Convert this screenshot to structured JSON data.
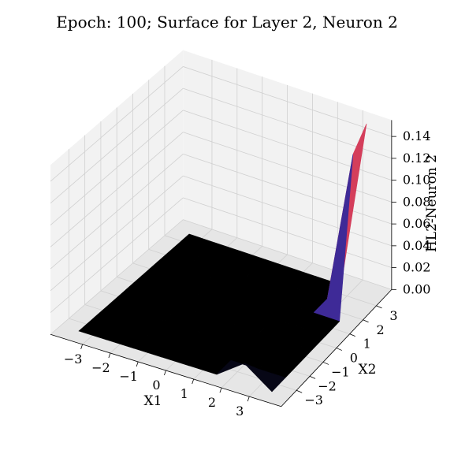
{
  "chart_data": {
    "type": "surface3d",
    "title": "Epoch: 100; Surface for Layer 2, Neuron 2",
    "xlabel": "X1",
    "ylabel": "X2",
    "zlabel": "HL2-Neuron 2",
    "x_ticks": [
      "−3",
      "−2",
      "−1",
      "0",
      "1",
      "2",
      "3"
    ],
    "y_ticks": [
      "−3",
      "−2",
      "−1",
      "0",
      "1",
      "2",
      "3"
    ],
    "z_ticks": [
      "0.00",
      "0.02",
      "0.04",
      "0.06",
      "0.08",
      "0.10",
      "0.12",
      "0.14"
    ],
    "xlim": [
      -3.5,
      3.5
    ],
    "ylim": [
      -3.5,
      3.5
    ],
    "zlim": [
      0,
      0.155
    ],
    "colormap": "CMRmap",
    "grid": true,
    "surface": {
      "x": [
        -3.5,
        -2.5,
        -1.5,
        -0.5,
        0.5,
        1.5,
        2.5,
        3.5
      ],
      "y": [
        -3.5,
        -2.5,
        -1.5,
        -0.5,
        0.5,
        1.5,
        2.5,
        3.5
      ],
      "z": [
        [
          0,
          0,
          0,
          0,
          0,
          0,
          0,
          0
        ],
        [
          0,
          0,
          0,
          0,
          0,
          0,
          0,
          0
        ],
        [
          0,
          0,
          0,
          0,
          0,
          0,
          0,
          0
        ],
        [
          0,
          0,
          0,
          0,
          0,
          0,
          0,
          0
        ],
        [
          0,
          0,
          0,
          0,
          0,
          0,
          0,
          0
        ],
        [
          0,
          0,
          0,
          0,
          0,
          0,
          0,
          0
        ],
        [
          0.018,
          0,
          0,
          0,
          0,
          0,
          0,
          0
        ],
        [
          0,
          0,
          0,
          0,
          0,
          0,
          0.14,
          0.155
        ]
      ]
    }
  },
  "colors": {
    "pane": "#f2f2f2",
    "pane_floor": "#e6e6e6",
    "grid": "#d0d0d0",
    "cmap": [
      "#000000",
      "#262680",
      "#6a32c0",
      "#e6404a",
      "#f08c1e",
      "#e6c83c",
      "#ffffff"
    ]
  }
}
